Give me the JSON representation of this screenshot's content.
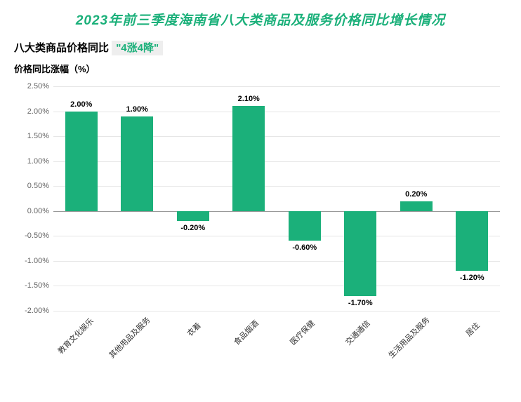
{
  "title": "2023年前三季度海南省八大类商品及服务价格同比增长情况",
  "title_color": "#1bb07a",
  "title_fontsize": 19,
  "subtitle_prefix": "八大类商品价格同比",
  "subtitle_highlight": "\"4涨4降\"",
  "subtitle_highlight_color": "#1bb07a",
  "subtitle_highlight_bg": "#eeeeee",
  "subtitle_fontsize": 15,
  "ylabel": "价格同比涨幅（%）",
  "ylabel_fontsize": 13,
  "chart": {
    "type": "bar",
    "categories": [
      "教育文化娱乐",
      "其他用品及服务",
      "衣着",
      "食品烟酒",
      "医疗保健",
      "交通通信",
      "生活用品及服务",
      "居住"
    ],
    "values": [
      2.0,
      1.9,
      -0.2,
      2.1,
      -0.6,
      -1.7,
      0.2,
      -1.2
    ],
    "value_labels": [
      "2.00%",
      "1.90%",
      "-0.20%",
      "2.10%",
      "-0.60%",
      "-1.70%",
      "0.20%",
      "-1.20%"
    ],
    "bar_color": "#1bb07a",
    "background_color": "#ffffff",
    "grid_color": "#e6e6e6",
    "zero_line_color": "#999999",
    "ylim": [
      -2.0,
      2.5
    ],
    "ytick_step": 0.5,
    "yticks": [
      -2.0,
      -1.5,
      -1.0,
      -0.5,
      0.0,
      0.5,
      1.0,
      1.5,
      2.0,
      2.5
    ],
    "ytick_labels": [
      "-2.00%",
      "-1.50%",
      "-1.00%",
      "-0.50%",
      "0.00%",
      "0.50%",
      "1.00%",
      "1.50%",
      "2.00%",
      "2.50%"
    ],
    "bar_width_ratio": 0.58,
    "label_fontsize": 11,
    "tick_fontsize": 11,
    "tick_color": "#666666",
    "xlabel_rotation": -45
  }
}
